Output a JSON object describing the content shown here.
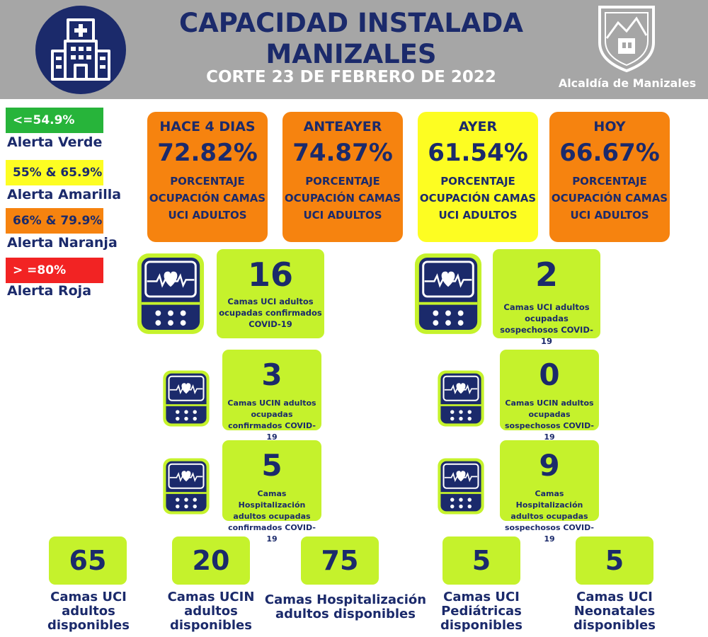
{
  "header": {
    "title_line1": "CAPACIDAD INSTALADA",
    "title_line2": "MANIZALES",
    "subtitle": "CORTE 23 DE FEBRERO DE 2022",
    "org": "Alcaldía de Manizales"
  },
  "legend": [
    {
      "range": "<=54.9%",
      "label": "Alerta Verde",
      "color": "#27b43a"
    },
    {
      "range": "55% & 65.9%",
      "label": "Alerta Amarilla",
      "color": "#fdfd22"
    },
    {
      "range": "66% & 79.9%",
      "label": "Alerta Naranja",
      "color": "#f6830f"
    },
    {
      "range": "> =80%",
      "label": "Alerta Roja",
      "color": "#f22323"
    }
  ],
  "occupancy": [
    {
      "when": "HACE 4 DIAS",
      "value": "72.82%",
      "desc": "PORCENTAJE OCUPACIÓN CAMAS UCI ADULTOS",
      "color": "#f6830f"
    },
    {
      "when": "ANTEAYER",
      "value": "74.87%",
      "desc": "PORCENTAJE OCUPACIÓN CAMAS UCI ADULTOS",
      "color": "#f6830f"
    },
    {
      "when": "AYER",
      "value": "61.54%",
      "desc": "PORCENTAJE OCUPACIÓN CAMAS UCI ADULTOS",
      "color": "#fdfd22"
    },
    {
      "when": "HOY",
      "value": "66.67%",
      "desc": "PORCENTAJE OCUPACIÓN CAMAS UCI ADULTOS",
      "color": "#f6830f"
    }
  ],
  "occupied": {
    "uci_confirmed": {
      "value": "16",
      "label": "Camas UCI adultos ocupadas confirmados COVID-19"
    },
    "uci_suspected": {
      "value": "2",
      "label": "Camas UCI adultos ocupadas sospechosos COVID-19"
    },
    "ucin_confirmed": {
      "value": "3",
      "label": "Camas  UCIN adultos ocupadas confirmados COVID-19"
    },
    "ucin_suspected": {
      "value": "0",
      "label": "Camas  UCIN adultos ocupadas sospechosos COVID-19"
    },
    "hosp_confirmed": {
      "value": "5",
      "label": "Camas  Hospitalización adultos ocupadas confirmados COVID-19"
    },
    "hosp_suspected": {
      "value": "9",
      "label": "Camas  Hospitalización adultos ocupadas sospechosos COVID-19"
    }
  },
  "available": [
    {
      "value": "65",
      "label": "Camas UCI\nadultos\ndisponibles"
    },
    {
      "value": "20",
      "label": "Camas UCIN\nadultos\ndisponibles"
    },
    {
      "value": "75",
      "label": "Camas  Hospitalización\nadultos disponibles"
    },
    {
      "value": "5",
      "label": "Camas  UCI\nPediátricas\ndisponibles"
    },
    {
      "value": "5",
      "label": "Camas  UCI\nNeonatales\ndisponibles"
    }
  ],
  "icons": {
    "hospital": "hospital-building-icon",
    "monitor": "heart-monitor-icon",
    "shield": "manizales-coat-of-arms"
  }
}
